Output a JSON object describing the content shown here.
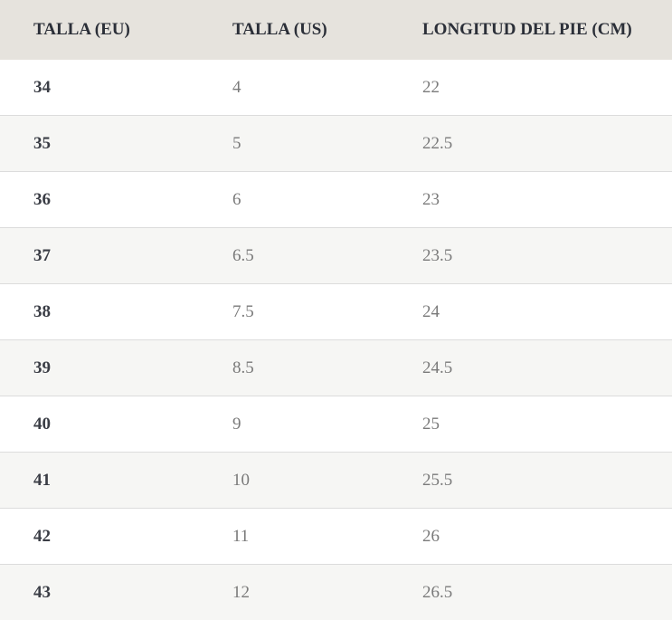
{
  "table": {
    "header": [
      "TALLA (EU)",
      "TALLA (US)",
      "LONGITUD DEL PIE (CM)"
    ],
    "rows": [
      [
        "34",
        "4",
        "22"
      ],
      [
        "35",
        "5",
        "22.5"
      ],
      [
        "36",
        "6",
        "23"
      ],
      [
        "37",
        "6.5",
        "23.5"
      ],
      [
        "38",
        "7.5",
        "24"
      ],
      [
        "39",
        "8.5",
        "24.5"
      ],
      [
        "40",
        "9",
        "25"
      ],
      [
        "41",
        "10",
        "25.5"
      ],
      [
        "42",
        "11",
        "26"
      ],
      [
        "43",
        "12",
        "26.5"
      ]
    ]
  }
}
